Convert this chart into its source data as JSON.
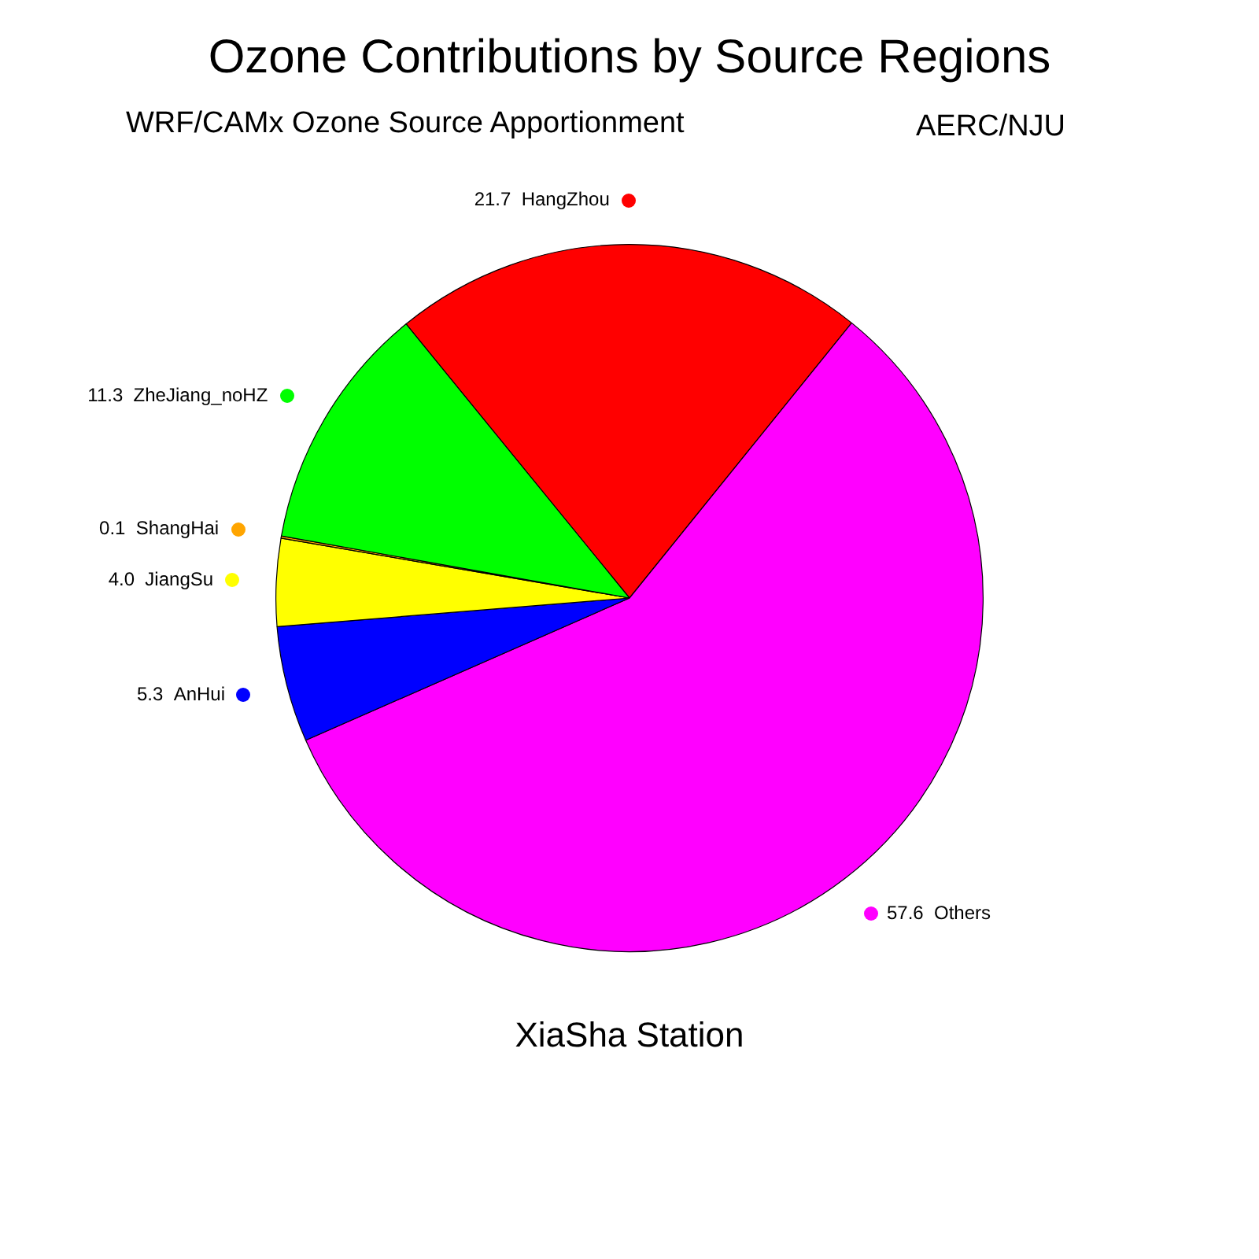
{
  "chart_data": {
    "type": "pie",
    "title": "Ozone Contributions by Source Regions",
    "subtitle": "WRF/CAMx Ozone Source Apportionment",
    "annotations": [
      "AERC/NJU",
      "XiaSha Station"
    ],
    "categories": [
      "HangZhou",
      "Others",
      "AnHui",
      "JiangSu",
      "ShangHai",
      "ZheJiang_noHZ"
    ],
    "values": [
      21.7,
      57.6,
      5.3,
      4.0,
      0.1,
      11.3
    ],
    "colors": [
      "#ff0000",
      "#ff00ff",
      "#0000ff",
      "#ffff00",
      "#ffa500",
      "#00ff00"
    ],
    "value_labels": [
      "21.7",
      "57.6",
      "5.3",
      "4.0",
      "0.1",
      "11.3"
    ],
    "legend": "left"
  }
}
